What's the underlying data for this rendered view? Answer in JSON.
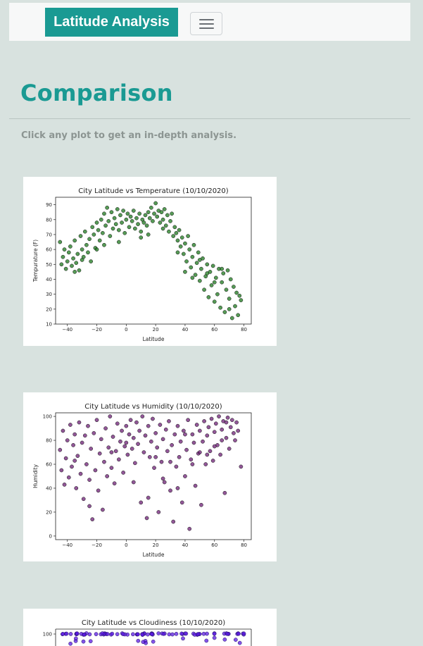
{
  "navbar": {
    "brand": "Latitude Analysis",
    "toggler_icon": "hamburger-icon"
  },
  "main": {
    "heading": "Comparison",
    "subtitle": "Click any plot to get an in-depth analysis."
  },
  "colors": {
    "accent": "#1a9a93",
    "background": "#d8e2df",
    "temperature_points": "#1e7a1e",
    "humidity_points": "#6e1f75",
    "cloudiness_points": "#5a18e0"
  },
  "chart_data": [
    {
      "type": "scatter",
      "title": "City Latitude vs Temperature (10/10/2020)",
      "xlabel": "Latitude",
      "ylabel": "Tempurature (F)",
      "xlim": [
        -48,
        85
      ],
      "ylim": [
        10,
        95
      ],
      "xticks": [
        -40,
        -20,
        0,
        20,
        40,
        60,
        80
      ],
      "yticks": [
        10,
        20,
        30,
        40,
        50,
        60,
        70,
        80,
        90
      ],
      "color": "#1e7a1e",
      "grid": false,
      "legend": "none",
      "points": [
        [
          -45,
          65
        ],
        [
          -44,
          50
        ],
        [
          -43,
          55
        ],
        [
          -42,
          60
        ],
        [
          -41,
          47
        ],
        [
          -40,
          52
        ],
        [
          -39,
          58
        ],
        [
          -38,
          62
        ],
        [
          -37,
          49
        ],
        [
          -36,
          54
        ],
        [
          -35,
          66
        ],
        [
          -34,
          51
        ],
        [
          -33,
          57
        ],
        [
          -32,
          46
        ],
        [
          -31,
          69
        ],
        [
          -30,
          60
        ],
        [
          -29,
          55
        ],
        [
          -28,
          72
        ],
        [
          -27,
          63
        ],
        [
          -26,
          58
        ],
        [
          -25,
          67
        ],
        [
          -24,
          52
        ],
        [
          -23,
          75
        ],
        [
          -22,
          70
        ],
        [
          -21,
          61
        ],
        [
          -20,
          78
        ],
        [
          -19,
          73
        ],
        [
          -18,
          66
        ],
        [
          -17,
          80
        ],
        [
          -16,
          71
        ],
        [
          -15,
          84
        ],
        [
          -14,
          76
        ],
        [
          -13,
          88
        ],
        [
          -12,
          79
        ],
        [
          -11,
          69
        ],
        [
          -10,
          85
        ],
        [
          -9,
          74
        ],
        [
          -8,
          81
        ],
        [
          -7,
          77
        ],
        [
          -6,
          87
        ],
        [
          -5,
          73
        ],
        [
          -4,
          83
        ],
        [
          -3,
          78
        ],
        [
          -2,
          86
        ],
        [
          -1,
          71
        ],
        [
          0,
          80
        ],
        [
          1,
          84
        ],
        [
          2,
          75
        ],
        [
          3,
          82
        ],
        [
          4,
          79
        ],
        [
          5,
          86
        ],
        [
          6,
          74
        ],
        [
          7,
          81
        ],
        [
          8,
          77
        ],
        [
          9,
          84
        ],
        [
          10,
          72
        ],
        [
          11,
          80
        ],
        [
          12,
          78
        ],
        [
          13,
          83
        ],
        [
          14,
          76
        ],
        [
          15,
          85
        ],
        [
          16,
          81
        ],
        [
          17,
          88
        ],
        [
          18,
          79
        ],
        [
          19,
          84
        ],
        [
          20,
          91
        ],
        [
          21,
          82
        ],
        [
          22,
          86
        ],
        [
          23,
          78
        ],
        [
          24,
          85
        ],
        [
          25,
          80
        ],
        [
          26,
          87
        ],
        [
          27,
          76
        ],
        [
          28,
          83
        ],
        [
          29,
          72
        ],
        [
          30,
          79
        ],
        [
          31,
          84
        ],
        [
          32,
          69
        ],
        [
          33,
          75
        ],
        [
          34,
          71
        ],
        [
          35,
          66
        ],
        [
          36,
          73
        ],
        [
          37,
          62
        ],
        [
          38,
          68
        ],
        [
          39,
          57
        ],
        [
          40,
          64
        ],
        [
          41,
          52
        ],
        [
          42,
          69
        ],
        [
          43,
          60
        ],
        [
          44,
          48
        ],
        [
          45,
          55
        ],
        [
          46,
          63
        ],
        [
          47,
          43
        ],
        [
          48,
          51
        ],
        [
          49,
          58
        ],
        [
          50,
          39
        ],
        [
          51,
          47
        ],
        [
          52,
          54
        ],
        [
          53,
          33
        ],
        [
          54,
          42
        ],
        [
          55,
          50
        ],
        [
          56,
          28
        ],
        [
          57,
          45
        ],
        [
          58,
          36
        ],
        [
          59,
          49
        ],
        [
          60,
          25
        ],
        [
          61,
          41
        ],
        [
          62,
          30
        ],
        [
          63,
          47
        ],
        [
          64,
          21
        ],
        [
          65,
          38
        ],
        [
          66,
          44
        ],
        [
          67,
          18
        ],
        [
          68,
          33
        ],
        [
          69,
          46
        ],
        [
          70,
          27
        ],
        [
          71,
          40
        ],
        [
          72,
          14
        ],
        [
          73,
          35
        ],
        [
          74,
          22
        ],
        [
          75,
          31
        ],
        [
          76,
          16
        ],
        [
          77,
          29
        ],
        [
          78,
          26
        ],
        [
          -30,
          53
        ],
        [
          -20,
          60
        ],
        [
          -5,
          65
        ],
        [
          10,
          68
        ],
        [
          25,
          74
        ],
        [
          40,
          45
        ],
        [
          55,
          44
        ],
        [
          65,
          47
        ],
        [
          50,
          53
        ],
        [
          45,
          41
        ],
        [
          60,
          38
        ],
        [
          35,
          58
        ],
        [
          15,
          70
        ],
        [
          -35,
          45
        ],
        [
          -15,
          63
        ],
        [
          70,
          20
        ]
      ]
    },
    {
      "type": "scatter",
      "title": "City Latitude vs Humidity (10/10/2020)",
      "xlabel": "Latitude",
      "ylabel": "Humidity",
      "xlim": [
        -48,
        85
      ],
      "ylim": [
        -3,
        103
      ],
      "xticks": [
        -40,
        -20,
        0,
        20,
        40,
        60,
        80
      ],
      "yticks": [
        0,
        20,
        40,
        60,
        80,
        100
      ],
      "color": "#6e1f75",
      "grid": false,
      "legend": "none",
      "points": [
        [
          -45,
          72
        ],
        [
          -44,
          55
        ],
        [
          -43,
          88
        ],
        [
          -42,
          43
        ],
        [
          -41,
          65
        ],
        [
          -40,
          80
        ],
        [
          -39,
          49
        ],
        [
          -38,
          93
        ],
        [
          -37,
          58
        ],
        [
          -36,
          76
        ],
        [
          -35,
          85
        ],
        [
          -34,
          40
        ],
        [
          -33,
          67
        ],
        [
          -32,
          95
        ],
        [
          -31,
          52
        ],
        [
          -30,
          78
        ],
        [
          -29,
          31
        ],
        [
          -28,
          84
        ],
        [
          -27,
          60
        ],
        [
          -26,
          92
        ],
        [
          -25,
          47
        ],
        [
          -24,
          73
        ],
        [
          -23,
          14
        ],
        [
          -22,
          86
        ],
        [
          -21,
          55
        ],
        [
          -20,
          97
        ],
        [
          -19,
          38
        ],
        [
          -18,
          69
        ],
        [
          -17,
          81
        ],
        [
          -16,
          22
        ],
        [
          -15,
          62
        ],
        [
          -14,
          90
        ],
        [
          -13,
          50
        ],
        [
          -12,
          74
        ],
        [
          -11,
          100
        ],
        [
          -10,
          57
        ],
        [
          -9,
          83
        ],
        [
          -8,
          44
        ],
        [
          -7,
          71
        ],
        [
          -6,
          94
        ],
        [
          -5,
          64
        ],
        [
          -4,
          79
        ],
        [
          -3,
          88
        ],
        [
          -2,
          53
        ],
        [
          -1,
          75
        ],
        [
          0,
          92
        ],
        [
          1,
          68
        ],
        [
          2,
          85
        ],
        [
          3,
          97
        ],
        [
          4,
          73
        ],
        [
          5,
          82
        ],
        [
          6,
          61
        ],
        [
          7,
          95
        ],
        [
          8,
          77
        ],
        [
          9,
          88
        ],
        [
          10,
          28
        ],
        [
          11,
          100
        ],
        [
          12,
          70
        ],
        [
          13,
          84
        ],
        [
          14,
          15
        ],
        [
          15,
          92
        ],
        [
          16,
          66
        ],
        [
          17,
          79
        ],
        [
          18,
          98
        ],
        [
          19,
          57
        ],
        [
          20,
          86
        ],
        [
          21,
          74
        ],
        [
          22,
          20
        ],
        [
          23,
          93
        ],
        [
          24,
          62
        ],
        [
          25,
          81
        ],
        [
          26,
          45
        ],
        [
          27,
          89
        ],
        [
          28,
          71
        ],
        [
          29,
          96
        ],
        [
          30,
          38
        ],
        [
          31,
          76
        ],
        [
          32,
          12
        ],
        [
          33,
          85
        ],
        [
          34,
          58
        ],
        [
          35,
          92
        ],
        [
          36,
          66
        ],
        [
          37,
          79
        ],
        [
          38,
          28
        ],
        [
          39,
          88
        ],
        [
          40,
          50
        ],
        [
          41,
          72
        ],
        [
          42,
          97
        ],
        [
          43,
          6
        ],
        [
          44,
          64
        ],
        [
          45,
          85
        ],
        [
          46,
          78
        ],
        [
          47,
          42
        ],
        [
          48,
          93
        ],
        [
          49,
          69
        ],
        [
          50,
          88
        ],
        [
          51,
          26
        ],
        [
          52,
          79
        ],
        [
          53,
          96
        ],
        [
          54,
          60
        ],
        [
          55,
          84
        ],
        [
          56,
          91
        ],
        [
          57,
          71
        ],
        [
          58,
          98
        ],
        [
          59,
          63
        ],
        [
          60,
          87
        ],
        [
          61,
          94
        ],
        [
          62,
          76
        ],
        [
          63,
          100
        ],
        [
          64,
          68
        ],
        [
          65,
          89
        ],
        [
          66,
          96
        ],
        [
          67,
          36
        ],
        [
          68,
          82
        ],
        [
          69,
          99
        ],
        [
          70,
          73
        ],
        [
          71,
          91
        ],
        [
          72,
          97
        ],
        [
          73,
          86
        ],
        [
          74,
          80
        ],
        [
          75,
          95
        ],
        [
          76,
          88
        ],
        [
          78,
          58
        ],
        [
          -35,
          63
        ],
        [
          -25,
          25
        ],
        [
          5,
          45
        ],
        [
          15,
          32
        ],
        [
          25,
          48
        ],
        [
          35,
          40
        ],
        [
          45,
          60
        ],
        [
          55,
          68
        ],
        [
          60,
          75
        ],
        [
          65,
          80
        ],
        [
          -10,
          70
        ],
        [
          0,
          78
        ],
        [
          20,
          66
        ],
        [
          30,
          62
        ],
        [
          40,
          85
        ],
        [
          50,
          70
        ],
        [
          68,
          95
        ]
      ]
    },
    {
      "type": "scatter",
      "title": "City Latitude vs Cloudiness (10/10/2020)",
      "color": "#5a18e0",
      "yticks": [
        100
      ],
      "partial": true
    }
  ]
}
